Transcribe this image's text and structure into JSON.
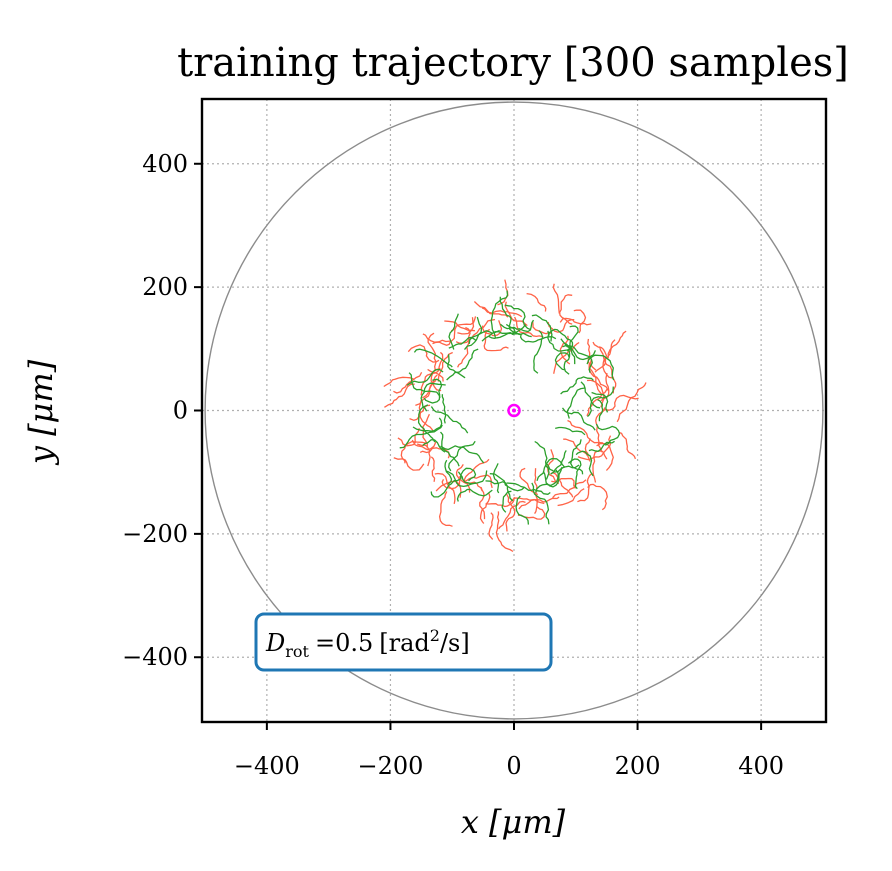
{
  "chart_data": {
    "type": "line",
    "title": "training trajectory [300 samples]",
    "xlabel": "x [μm]",
    "ylabel": "y [μm]",
    "xlim": [
      -505,
      505
    ],
    "ylim": [
      -505,
      505
    ],
    "xticks": [
      -400,
      -200,
      0,
      200,
      400
    ],
    "yticks": [
      -400,
      -200,
      0,
      200,
      400
    ],
    "xtick_labels": [
      "−400",
      "−200",
      "0",
      "200",
      "400"
    ],
    "ytick_labels": [
      "400",
      "200",
      "0",
      "−200",
      "−400"
    ],
    "grid": true,
    "boundary_circle": {
      "center": [
        0,
        0
      ],
      "radius": 500,
      "color": "#8c8c8c"
    },
    "target_point": {
      "x": 0,
      "y": 0,
      "color": "#ff00ff"
    },
    "annotation": {
      "text": "D_rot =0.5 [rad²/s]",
      "symbol": "D",
      "subscript": "rot",
      "value": "=0.5",
      "unit": "[rad",
      "unit_sup": "2",
      "unit_end": "/s]",
      "position": "lower-left",
      "border_color": "#1f77b4"
    },
    "series": [
      {
        "color": "#ff6347",
        "ring_radius": 155,
        "ring_thickness": 40,
        "approx_points": [
          [
            -150,
            20
          ],
          [
            -140,
            60
          ],
          [
            -110,
            100
          ],
          [
            -70,
            130
          ],
          [
            -20,
            150
          ],
          [
            30,
            150
          ],
          [
            80,
            130
          ],
          [
            120,
            90
          ],
          [
            150,
            40
          ],
          [
            165,
            -10
          ],
          [
            155,
            -60
          ],
          [
            120,
            -100
          ],
          [
            80,
            -130
          ],
          [
            30,
            -150
          ],
          [
            -20,
            -160
          ],
          [
            -70,
            -150
          ],
          [
            -110,
            -120
          ],
          [
            -145,
            -70
          ],
          [
            -160,
            -20
          ]
        ]
      },
      {
        "color": "#2ca02c",
        "ring_radius": 130,
        "ring_thickness": 25,
        "approx_points": [
          [
            -130,
            10
          ],
          [
            -120,
            50
          ],
          [
            -95,
            90
          ],
          [
            -60,
            115
          ],
          [
            -15,
            130
          ],
          [
            30,
            130
          ],
          [
            70,
            115
          ],
          [
            105,
            80
          ],
          [
            125,
            35
          ],
          [
            135,
            -15
          ],
          [
            120,
            -60
          ],
          [
            90,
            -95
          ],
          [
            50,
            -125
          ],
          [
            0,
            -135
          ],
          [
            -45,
            -130
          ],
          [
            -85,
            -105
          ],
          [
            -115,
            -70
          ],
          [
            -130,
            -30
          ]
        ]
      }
    ]
  }
}
